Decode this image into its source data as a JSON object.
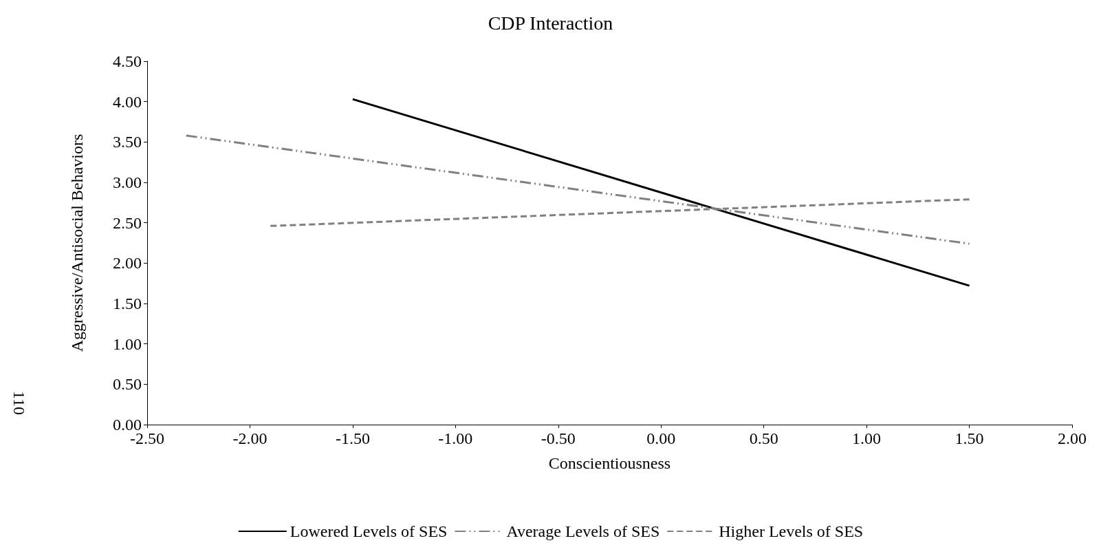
{
  "chart_data": {
    "type": "line",
    "title": "CDP Interaction",
    "xlabel": "Conscientiousness",
    "ylabel": "Aggressive/Antisocial Behaviors",
    "annotations": [
      "110"
    ],
    "series": [
      {
        "name": "Lowered Levels of SES",
        "color": "#000000",
        "line_style": "solid",
        "x": [
          -1.5,
          1.5
        ],
        "values": [
          4.03,
          1.72
        ]
      },
      {
        "name": "Average Levels of SES",
        "color": "#808080",
        "line_style": "dashdot",
        "x": [
          -2.31,
          1.5
        ],
        "values": [
          3.58,
          2.24
        ]
      },
      {
        "name": "Higher Levels of SES",
        "color": "#808080",
        "line_style": "dashed",
        "x": [
          -1.9,
          1.5
        ],
        "values": [
          2.46,
          2.79
        ]
      }
    ],
    "xlim": [
      -2.5,
      2.0
    ],
    "xticks": [
      {
        "value": -2.5,
        "label": "-2.50"
      },
      {
        "value": -2.0,
        "label": "-2.00"
      },
      {
        "value": -1.5,
        "label": "-1.50"
      },
      {
        "value": -1.0,
        "label": "-1.00"
      },
      {
        "value": -0.5,
        "label": "-0.50"
      },
      {
        "value": 0,
        "label": "0.00"
      },
      {
        "value": 0.5,
        "label": "0.50"
      },
      {
        "value": 1.0,
        "label": "1.00"
      },
      {
        "value": 1.5,
        "label": "1.50"
      },
      {
        "value": 2.0,
        "label": "2.00"
      }
    ],
    "ylim": [
      0,
      4.5
    ],
    "yticks": [
      {
        "value": 0,
        "label": "0.00"
      },
      {
        "value": 0.5,
        "label": "0.50"
      },
      {
        "value": 1.0,
        "label": "1.00"
      },
      {
        "value": 1.5,
        "label": "1.50"
      },
      {
        "value": 2.0,
        "label": "2.00"
      },
      {
        "value": 2.5,
        "label": "2.50"
      },
      {
        "value": 3.0,
        "label": "3.00"
      },
      {
        "value": 3.5,
        "label": "3.50"
      },
      {
        "value": 4.0,
        "label": "4.00"
      },
      {
        "value": 4.5,
        "label": "4.50"
      }
    ],
    "grid": false,
    "legend": "bottom",
    "marker": "none"
  }
}
